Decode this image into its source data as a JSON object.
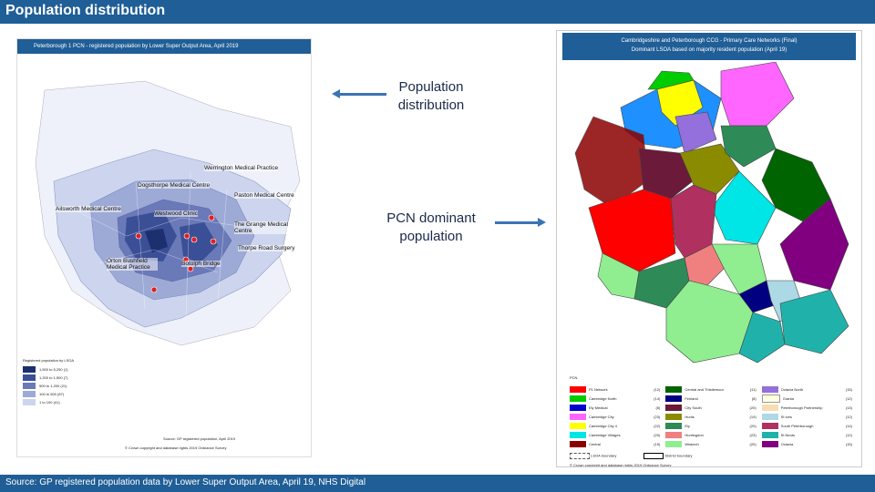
{
  "header": {
    "title": "Population distribution"
  },
  "footer": {
    "source": "Source: GP registered population data by Lower Super Output Area, April 19, NHS Digital"
  },
  "callouts": {
    "population": "Population distribution",
    "pcn": "PCN dominant population"
  },
  "left_map": {
    "title": "Peterborough 1 PCN - registered population by Lower Super Output Area, April 2019",
    "labels": {
      "werrington": "Werrington Medical Practice",
      "dogsthorpe": "Dogsthorpe Medical Centre",
      "paston": "Paston Medical Centre",
      "ailsworth": "Ailsworth Medical Centre",
      "westwood": "Westwood Clinic",
      "grange": "The Grange Medical Centre",
      "thorpe": "Thorpe Road Surgery",
      "orton": "Orton Bushfield Medical Practice",
      "botolph": "Botolph Bridge"
    },
    "legend_title": "Registered population by LSOA",
    "legend": [
      {
        "range": "1,500 to 5,250",
        "count": "(1)",
        "color": "#1c2f6e"
      },
      {
        "range": "1,200 to 1,500",
        "count": "(7)",
        "color": "#3b4f96"
      },
      {
        "range": "500 to 1,200",
        "count": "(21)",
        "color": "#6a79b8"
      },
      {
        "range": "100 to 500",
        "count": "(87)",
        "color": "#9eaad6"
      },
      {
        "range": "1 to 100",
        "count": "(41)",
        "color": "#cdd5ee"
      }
    ],
    "footnote1": "Source: GP registered population, April 2019",
    "footnote2": "© Crown copyright and database rights 2019 Ordnance Survey"
  },
  "right_map": {
    "title_line1": "Cambridgeshire and Peterborough CCG - Primary Care Networks (Final)",
    "title_line2": "Dominant LSOA based on majority resident population (April 19)",
    "legend_title": "PCN",
    "pcns": [
      {
        "name": "P1 Network",
        "count": "(12)",
        "color": "#ff0000"
      },
      {
        "name": "Cambridge North",
        "count": "(14)",
        "color": "#00cc00"
      },
      {
        "name": "Ely Medical",
        "count": "(5)",
        "color": "#0000cc"
      },
      {
        "name": "Cambridge City",
        "count": "(23)",
        "color": "#ff66ff"
      },
      {
        "name": "Cambridge City 4",
        "count": "(22)",
        "color": "#ffff00"
      },
      {
        "name": "Cambridge Villages",
        "count": "(20)",
        "color": "#00e5e5"
      },
      {
        "name": "Central",
        "count": "(15)",
        "color": "#8b0000"
      },
      {
        "name": "Central and Thistlemoor",
        "count": "(11)",
        "color": "#006400"
      },
      {
        "name": "Fenland",
        "count": "(8)",
        "color": "#000080"
      },
      {
        "name": "City South",
        "count": "(20)",
        "color": "#6b1a3a"
      },
      {
        "name": "Hunts",
        "count": "(19)",
        "color": "#8b8b00"
      },
      {
        "name": "Ely",
        "count": "(20)",
        "color": "#2e8b57"
      },
      {
        "name": "Huntingdon",
        "count": "(23)",
        "color": "#f08080"
      },
      {
        "name": "Wisbech",
        "count": "(20)",
        "color": "#90ee90"
      },
      {
        "name": "Octavia North",
        "count": "(15)",
        "color": "#9370db"
      },
      {
        "name": "Granta",
        "count": "(12)",
        "color": "#ffffe0"
      },
      {
        "name": "Peterborough Partnership",
        "count": "(13)",
        "color": "#f5deb3"
      },
      {
        "name": "St Ives",
        "count": "(12)",
        "color": "#add8e6"
      },
      {
        "name": "South Peterborough",
        "count": "(14)",
        "color": "#b03060"
      },
      {
        "name": "St Neots",
        "count": "(12)",
        "color": "#20b2aa"
      },
      {
        "name": "Octavia",
        "count": "(15)",
        "color": "#800080"
      }
    ],
    "key_lsoa": "LSOA boundary",
    "key_district": "District boundary",
    "footnote": "© Crown copyright and database rights 2019 Ordnance Survey"
  }
}
